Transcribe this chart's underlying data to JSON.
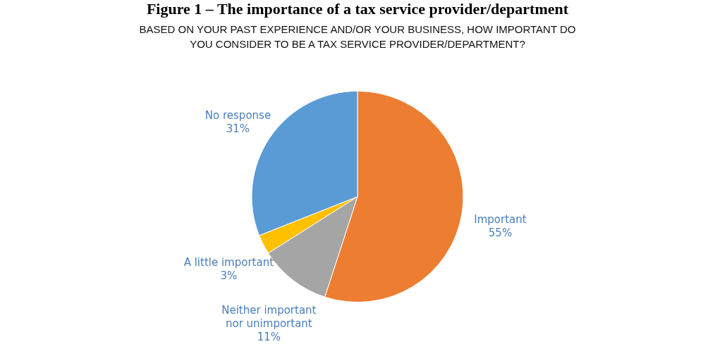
{
  "chart_data": {
    "type": "pie",
    "title": "Figure 1 – The importance of a tax service provider/department",
    "subtitle": [
      "BASED ON YOUR PAST EXPERIENCE AND/OR YOUR BUSINESS, HOW IMPORTANT DO",
      "YOU CONSIDER TO BE A TAX SERVICE PROVIDER/DEPARTMENT?"
    ],
    "categories": [
      "Important",
      "Neither important nor unimportant",
      "A little important",
      "No response"
    ],
    "values": [
      55,
      11,
      3,
      31
    ],
    "colors": [
      "#ed7d31",
      "#a5a5a5",
      "#ffc000",
      "#5b9bd5"
    ],
    "value_labels": [
      "55%",
      "11%",
      "3%",
      "31%"
    ]
  }
}
